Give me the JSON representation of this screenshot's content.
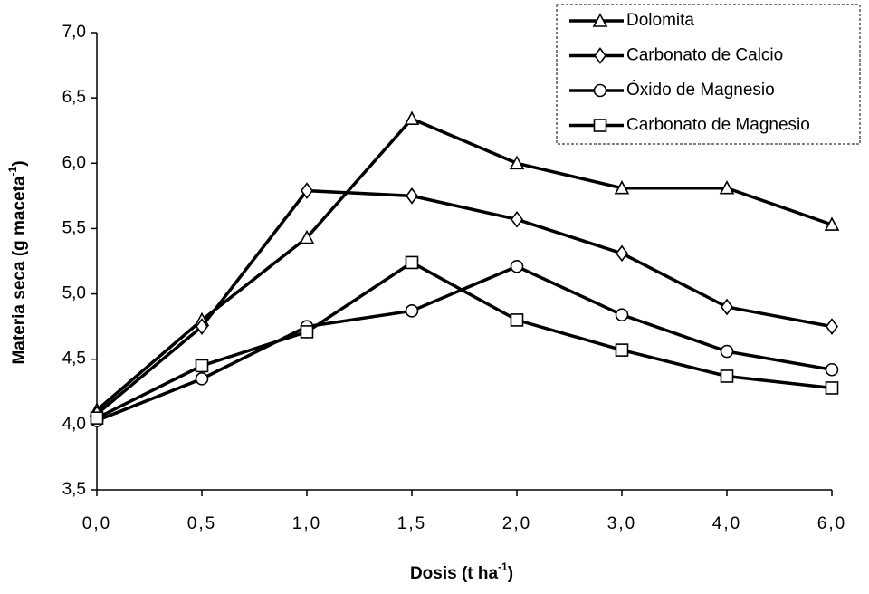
{
  "chart_data": {
    "type": "line",
    "y_label": [
      "Materia seca (g maceta",
      "-1",
      ")"
    ],
    "x_label": [
      "Dosis (t ha",
      "-1",
      ")"
    ],
    "categories": [
      "0,0",
      "0,5",
      "1,0",
      "1,5",
      "2,0",
      "3,0",
      "4,0",
      "6,0"
    ],
    "ylim": [
      3.5,
      7.0
    ],
    "yticks": [
      {
        "value": 3.5,
        "label": "3,5"
      },
      {
        "value": 4.0,
        "label": "4,0"
      },
      {
        "value": 4.5,
        "label": "4,5"
      },
      {
        "value": 5.0,
        "label": "5,0"
      },
      {
        "value": 5.5,
        "label": "5,5"
      },
      {
        "value": 6.0,
        "label": "6,0"
      },
      {
        "value": 6.5,
        "label": "6,5"
      },
      {
        "value": 7.0,
        "label": "7,0"
      }
    ],
    "grid": false,
    "legend": "top-right",
    "series": [
      {
        "name": "Dolomita",
        "color": "#000000",
        "marker": "triangle",
        "values": [
          4.11,
          4.8,
          5.43,
          6.34,
          6.0,
          5.81,
          5.81,
          5.53
        ]
      },
      {
        "name": "Carbonato de Calcio",
        "color": "#000000",
        "marker": "diamond",
        "values": [
          4.08,
          4.75,
          5.79,
          5.75,
          5.57,
          5.31,
          4.9,
          4.75
        ]
      },
      {
        "name": "Óxido de Magnesio",
        "color": "#000000",
        "marker": "circle",
        "values": [
          4.03,
          4.35,
          4.75,
          4.87,
          5.21,
          4.84,
          4.56,
          4.42
        ]
      },
      {
        "name": "Carbonato de Magnesio",
        "color": "#000000",
        "marker": "square",
        "values": [
          4.05,
          4.45,
          4.71,
          5.24,
          4.8,
          4.57,
          4.37,
          4.28
        ]
      }
    ]
  }
}
